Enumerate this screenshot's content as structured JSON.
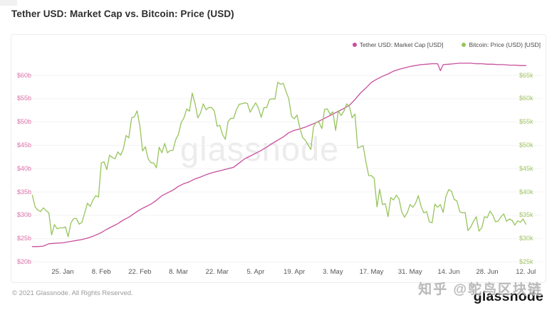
{
  "page": {
    "title": "Tether USD: Market Cap vs. Bitcoin: Price (USD)",
    "center_watermark": "glassnode",
    "footer": {
      "copyright": "© 2021 Glassnode. All Rights Reserved.",
      "logo": "glassnode",
      "watermark": "知乎 @鸵鸟区块链"
    }
  },
  "colors": {
    "tether_line": "#c84f9d",
    "bitcoin_line": "#97c45c",
    "left_axis_label": "#dd74ab",
    "right_axis_label": "#a2c464",
    "grid": "#f3f3f3",
    "tick_label": "#555555"
  },
  "chart_data": {
    "type": "line",
    "title": "Tether USD: Market Cap vs. Bitcoin: Price (USD)",
    "legend_position": "top-right",
    "grid": "horizontal-only",
    "x_ticks": {
      "days": [
        11,
        25,
        39,
        53,
        67,
        81,
        95,
        109,
        123,
        137,
        151,
        165,
        179
      ],
      "labels": [
        "25. Jan",
        "8. Feb",
        "22. Feb",
        "8. Mar",
        "22. Mar",
        "5. Apr",
        "19. Apr",
        "3. May",
        "17. May",
        "31. May",
        "14. Jun",
        "28. Jun",
        "12. Jul"
      ]
    },
    "left_axis": {
      "labels": [
        "$60b",
        "$55b",
        "$50b",
        "$45b",
        "$40b",
        "$35b",
        "$30b",
        "$25b",
        "$20b"
      ],
      "top_value": 60,
      "step": 5,
      "unit": "billion USD"
    },
    "right_axis": {
      "labels": [
        "$65k",
        "$60k",
        "$55k",
        "$50k",
        "$45k",
        "$40k",
        "$35k",
        "$30k",
        "$25k"
      ],
      "top_value": 65,
      "step": 5,
      "unit": "thousand USD"
    },
    "series": [
      {
        "name": "Tether USD: Market Cap [USD]",
        "axis": "left",
        "color": "#c84f9d",
        "days": [
          0,
          2,
          4,
          6,
          8,
          11,
          14,
          16,
          18,
          20,
          22,
          25,
          27,
          29,
          31,
          33,
          35,
          37,
          39,
          41,
          43,
          45,
          47,
          49,
          51,
          53,
          55,
          57,
          59,
          61,
          63,
          65,
          67,
          69,
          71,
          73,
          75,
          77,
          79,
          81,
          83,
          85,
          87,
          89,
          91,
          93,
          95,
          97,
          99,
          101,
          103,
          105,
          107,
          109,
          111,
          113,
          115,
          117,
          119,
          121,
          123,
          125,
          127,
          129,
          131,
          133,
          135,
          137,
          139,
          141,
          143,
          145,
          147,
          148,
          149,
          151,
          153,
          155,
          157,
          159,
          161,
          163,
          165,
          167,
          169,
          171,
          173,
          175,
          177,
          179
        ],
        "values": [
          23.3,
          23.3,
          23.4,
          23.9,
          24.0,
          24.1,
          24.4,
          24.6,
          24.8,
          25.1,
          25.5,
          26.3,
          27.0,
          27.6,
          28.2,
          29.0,
          29.6,
          30.4,
          31.2,
          31.8,
          32.4,
          33.2,
          34.2,
          34.8,
          35.4,
          36.2,
          36.8,
          37.2,
          37.8,
          38.2,
          38.7,
          39.1,
          39.4,
          39.7,
          40.0,
          40.3,
          41.2,
          42.1,
          42.7,
          43.3,
          43.9,
          44.6,
          45.4,
          46.1,
          46.8,
          47.7,
          48.2,
          48.5,
          48.9,
          49.4,
          49.9,
          50.5,
          51.1,
          51.7,
          52.3,
          52.9,
          53.6,
          54.8,
          56.2,
          57.3,
          58.5,
          59.2,
          59.8,
          60.3,
          60.9,
          61.3,
          61.6,
          61.9,
          62.1,
          62.3,
          62.4,
          62.5,
          62.5,
          61.0,
          62.3,
          62.4,
          62.5,
          62.6,
          62.6,
          62.6,
          62.5,
          62.5,
          62.4,
          62.4,
          62.3,
          62.3,
          62.2,
          62.2,
          62.1,
          62.1
        ]
      },
      {
        "name": "Bitcoin: Price (USD) [USD]",
        "axis": "right",
        "color": "#97c45c",
        "day_start": 0,
        "values": [
          39.3,
          36.8,
          36.1,
          35.8,
          36.6,
          36.0,
          35.5,
          30.8,
          33.0,
          32.1,
          32.3,
          32.3,
          32.5,
          30.4,
          33.4,
          34.3,
          34.3,
          33.1,
          33.5,
          35.5,
          37.6,
          36.9,
          38.3,
          39.2,
          38.9,
          46.2,
          46.5,
          44.8,
          47.9,
          47.4,
          47.1,
          48.6,
          47.9,
          49.2,
          52.1,
          51.6,
          55.9,
          56.1,
          57.4,
          54.1,
          48.8,
          49.7,
          47.1,
          46.3,
          46.2,
          45.2,
          49.6,
          48.4,
          50.4,
          48.4,
          48.9,
          48.9,
          51.2,
          52.4,
          54.9,
          55.9,
          57.8,
          57.3,
          61.2,
          59.0,
          55.9,
          56.9,
          58.9,
          57.6,
          58.1,
          58.1,
          57.4,
          54.1,
          54.3,
          52.3,
          51.3,
          55.1,
          55.8,
          55.8,
          57.6,
          58.8,
          58.9,
          59.1,
          59.0,
          57.1,
          58.2,
          59.1,
          58.0,
          56.0,
          58.1,
          58.1,
          59.8,
          60.0,
          59.9,
          63.5,
          63.1,
          63.3,
          61.6,
          60.0,
          56.2,
          55.7,
          56.5,
          53.8,
          51.7,
          51.1,
          50.1,
          49.1,
          54.0,
          55.0,
          54.9,
          53.6,
          57.7,
          57.8,
          56.6,
          57.2,
          53.2,
          57.4,
          56.4,
          57.3,
          58.9,
          58.3,
          55.9,
          56.7,
          49.4,
          49.7,
          49.9,
          46.4,
          43.5,
          43.5,
          42.9,
          36.8,
          40.6,
          37.3,
          37.5,
          34.7,
          38.8,
          38.3,
          39.3,
          38.5,
          35.7,
          34.6,
          35.6,
          37.3,
          36.7,
          37.6,
          39.2,
          36.9,
          35.5,
          35.8,
          33.6,
          33.4,
          37.4,
          36.7,
          37.3,
          35.6,
          39.0,
          40.5,
          40.2,
          38.4,
          38.1,
          35.8,
          35.5,
          35.6,
          31.7,
          32.5,
          33.7,
          34.7,
          31.6,
          32.3,
          34.7,
          34.5,
          35.9,
          35.0,
          33.6,
          33.8,
          34.7,
          35.3,
          33.7,
          34.2,
          33.9,
          32.9,
          33.8,
          33.5,
          34.2,
          33.1
        ]
      }
    ]
  }
}
